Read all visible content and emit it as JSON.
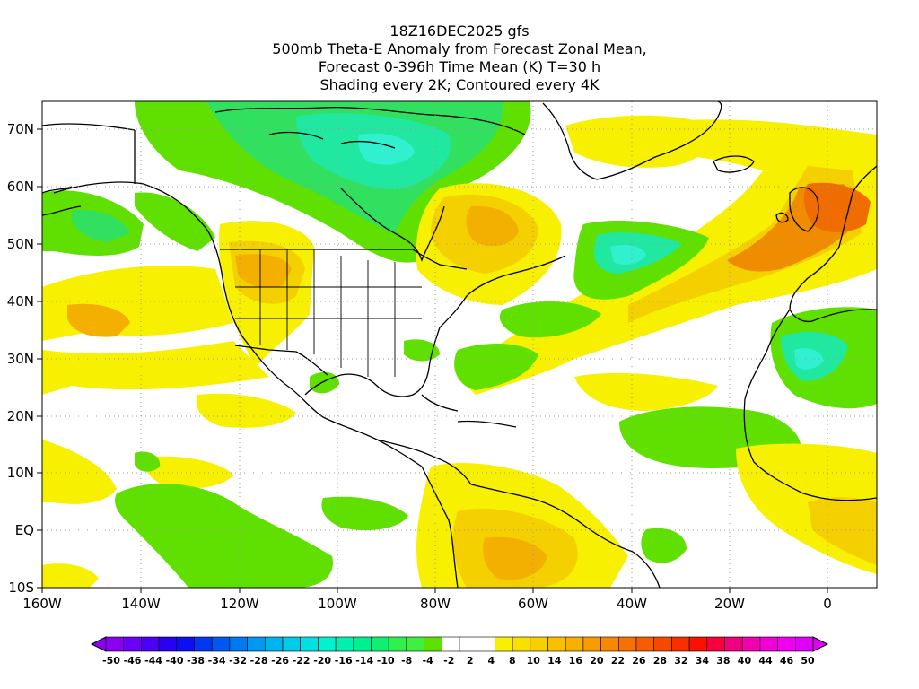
{
  "title": {
    "line1": "18Z16DEC2025 gfs",
    "line2": "500mb Theta-E Anomaly from Forecast Zonal Mean,",
    "line3": "Forecast 0-396h Time Mean (K) T=30 h",
    "line4": "Shading every 2K; Contoured every 4K"
  },
  "map": {
    "lon_range": [
      -160,
      10
    ],
    "lat_range": [
      -10,
      75
    ],
    "x_ticks": [
      "160W",
      "140W",
      "120W",
      "100W",
      "80W",
      "60W",
      "40W",
      "20W",
      "0"
    ],
    "y_ticks": [
      "10S",
      "EQ",
      "10N",
      "20N",
      "30N",
      "40N",
      "50N",
      "60N",
      "70N"
    ],
    "grid": "dotted",
    "colors": {
      "yellow": "#f7f000",
      "gold": "#f5d000",
      "orange_light": "#f4b000",
      "orange": "#f08c00",
      "orange_dark": "#ef6c00",
      "green": "#5fe000",
      "green_mid": "#32e060",
      "green_teal": "#20e8a0",
      "cyan_light": "#30f0d0",
      "coast": "#000000"
    }
  },
  "colorbar": {
    "labels": [
      "-50",
      "-46",
      "-44",
      "-40",
      "-38",
      "-34",
      "-32",
      "-28",
      "-26",
      "-22",
      "-20",
      "-16",
      "-14",
      "-10",
      "-8",
      "-4",
      "-2",
      "2",
      "4",
      "8",
      "10",
      "14",
      "16",
      "20",
      "22",
      "26",
      "28",
      "32",
      "34",
      "38",
      "40",
      "44",
      "46",
      "50"
    ],
    "colors": [
      "#8a00f0",
      "#6a00f5",
      "#4c00f5",
      "#2a00f0",
      "#0a10f0",
      "#0038f0",
      "#0058f0",
      "#0078f0",
      "#0098f0",
      "#00b4f0",
      "#00cce8",
      "#00e0e0",
      "#00f0d0",
      "#00f0b0",
      "#00f090",
      "#10f070",
      "#30f050",
      "#40f040",
      "#5ce000",
      "#ffffff",
      "#ffffff",
      "#ffffff",
      "#f8f000",
      "#f8e000",
      "#f8d000",
      "#f8c000",
      "#f8b000",
      "#f89c00",
      "#f88800",
      "#f87000",
      "#f85c00",
      "#f84800",
      "#f83000",
      "#f81000",
      "#f80040",
      "#f00080",
      "#f000b0",
      "#f000d8",
      "#f000f0",
      "#e000f8"
    ]
  }
}
